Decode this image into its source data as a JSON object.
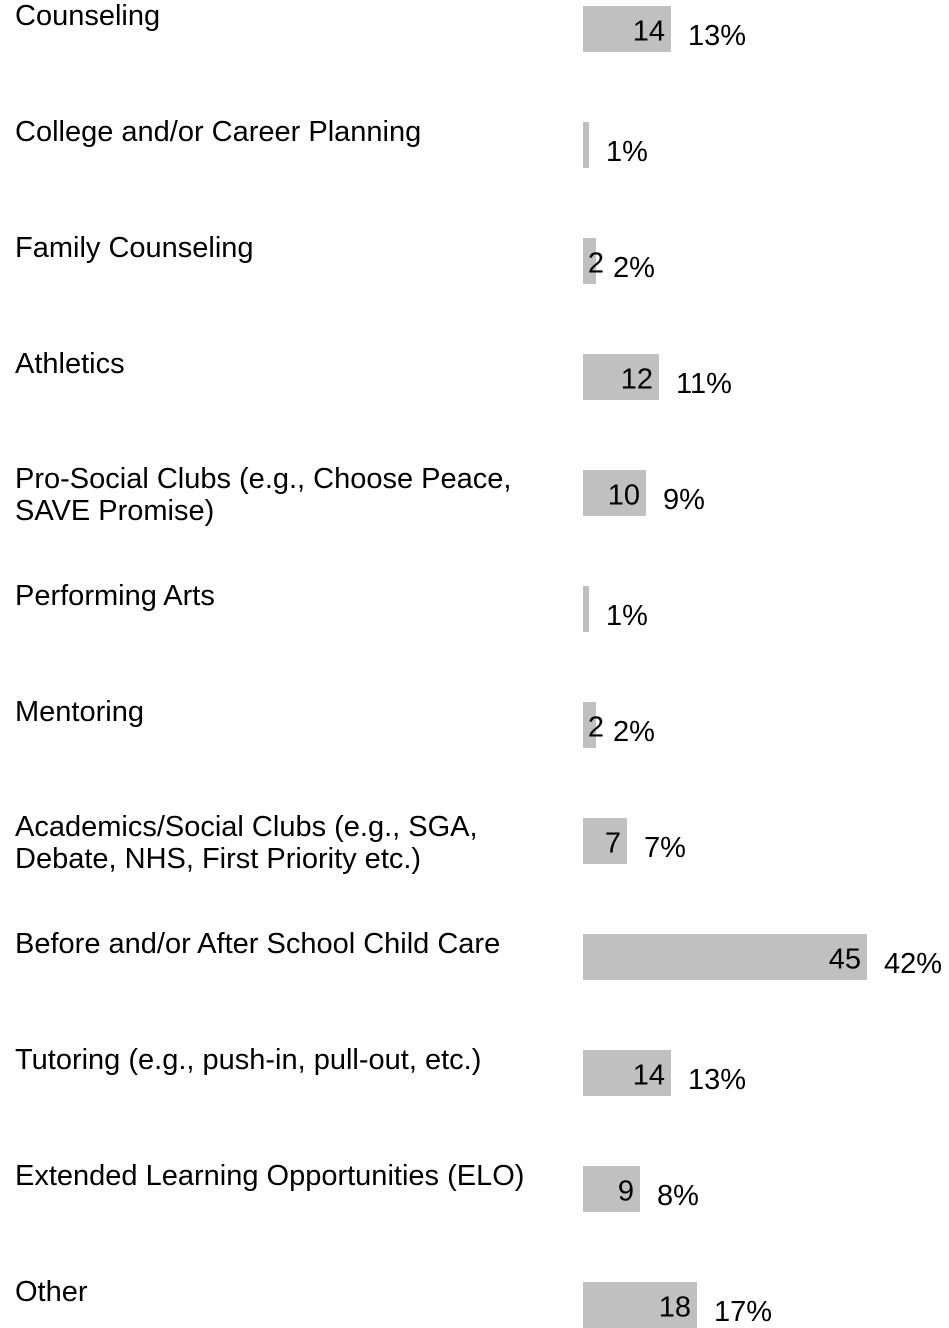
{
  "chart_data": {
    "type": "bar",
    "orientation": "horizontal",
    "categories": [
      "Counseling",
      "College and/or Career Planning",
      "Family Counseling",
      "Athletics",
      "Pro-Social Clubs (e.g., Choose Peace,\nSAVE Promise)",
      "Performing Arts",
      "Mentoring",
      "Academics/Social Clubs (e.g., SGA,\nDebate, NHS, First Priority etc.)",
      "Before and/or After School Child Care",
      "Tutoring (e.g., push-in, pull-out, etc.)",
      "Extended Learning Opportunities (ELO)",
      "Other"
    ],
    "values": [
      14,
      1,
      2,
      12,
      10,
      1,
      2,
      7,
      45,
      14,
      9,
      18
    ],
    "percent_labels": [
      "13%",
      "1%",
      "2%",
      "11%",
      "9%",
      "1%",
      "2%",
      "7%",
      "42%",
      "13%",
      "8%",
      "17%"
    ],
    "bar_color": "#c0c0c0",
    "xlim": [
      0,
      45
    ],
    "grid": false,
    "legend": "none"
  }
}
